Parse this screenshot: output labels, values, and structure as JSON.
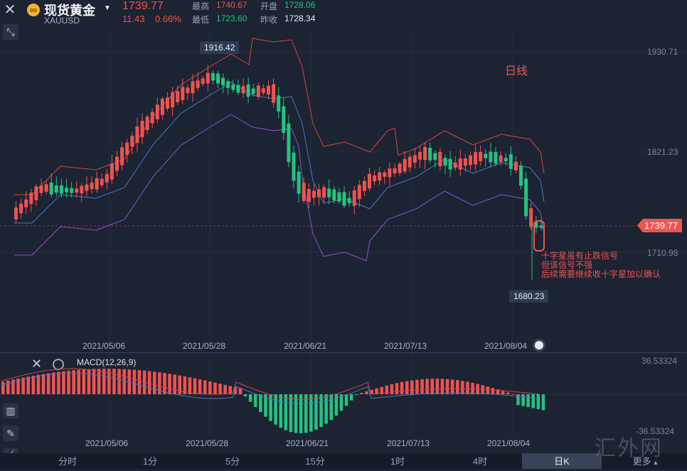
{
  "header": {
    "name": "现货黄金",
    "code": "XAUUSD",
    "price": "1739.77",
    "change": "11.43",
    "change_pct": "0.66%",
    "high_label": "最高",
    "high": "1740.67",
    "open_label": "开盘",
    "open": "1728.06",
    "low_label": "最低",
    "low": "1723.60",
    "prev_label": "昨收",
    "prev": "1728.34"
  },
  "colors": {
    "up": "#ef5350",
    "down": "#26c281",
    "bg": "#1c2333"
  },
  "main_chart": {
    "y_axis": [
      "1930.71",
      "1821.23",
      "1710.98"
    ],
    "high_marker": "1916.42",
    "low_marker": "1680.23",
    "current_price_tag": "1739.77",
    "period_label": "日线",
    "annotation": [
      "十字星虽有止跌信号",
      "但该信号不强",
      "后续需要继续收十字星加以确认"
    ],
    "x_axis": [
      "2021/05/06",
      "2021/05/28",
      "2021/06/21",
      "2021/07/13",
      "2021/08/04"
    ]
  },
  "macd": {
    "title": "MACD(12,26,9)",
    "y_top": "36.53324",
    "y_bottom": "-36.53324",
    "x_axis": [
      "2021/05/06",
      "2021/05/28",
      "2021/06/21",
      "2021/07/13",
      "2021/08/04"
    ]
  },
  "tabs": [
    "分时",
    "1分",
    "5分",
    "15分",
    "1时",
    "4时",
    "日K",
    "更多"
  ],
  "watermark": "汇外网"
}
